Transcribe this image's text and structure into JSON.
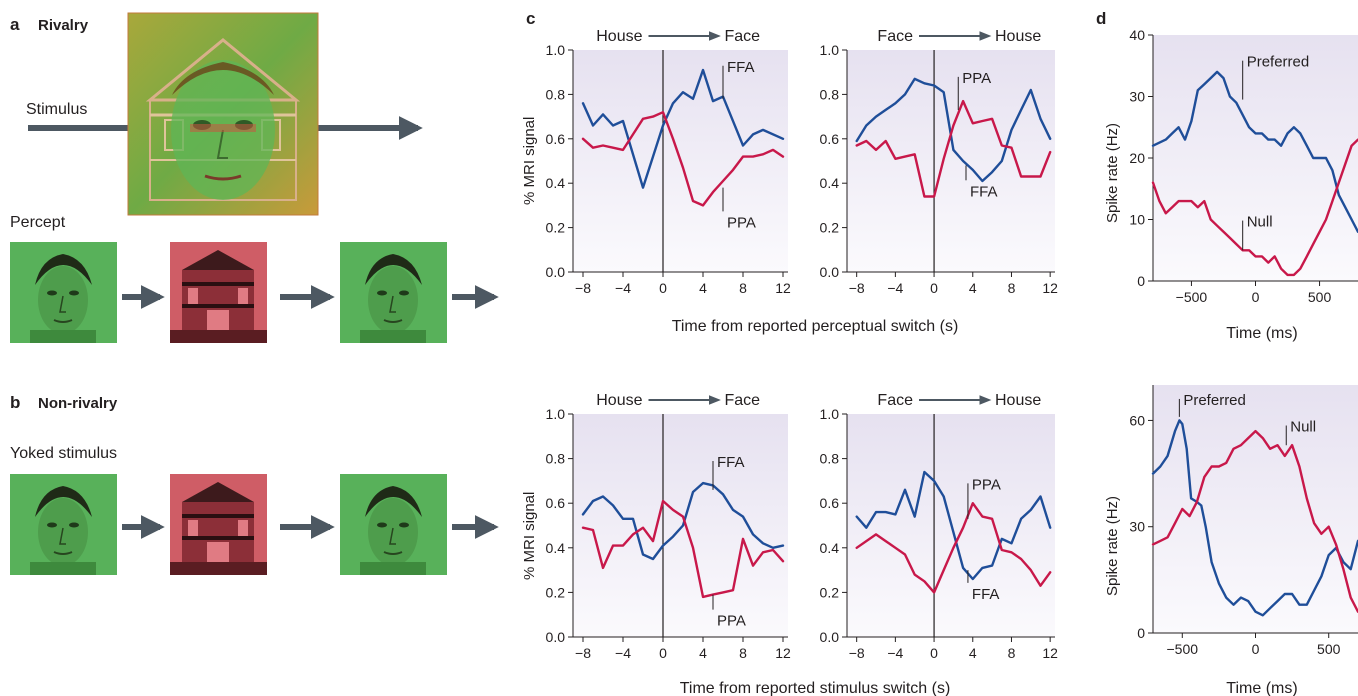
{
  "colors": {
    "ffa": "#1f4e99",
    "ppa": "#c8184a",
    "arrow": "#4d5862",
    "panel_bg_top": "#e9e5f2",
    "panel_bg_bottom": "#ffffff",
    "face_green": "#4fae55",
    "house_red": "#cc5661"
  },
  "panel_a": {
    "letter": "a",
    "title": "Rivalry",
    "stimulus_label": "Stimulus",
    "percept_label": "Percept",
    "stimulus_image": "superimposed-face-house-image",
    "percept_sequence": [
      "face",
      "house",
      "face"
    ]
  },
  "panel_b": {
    "letter": "b",
    "title": "Non-rivalry",
    "stimulus_label": "Yoked stimulus",
    "stimulus_sequence": [
      "face",
      "house",
      "face"
    ]
  },
  "panel_c": {
    "letter": "c",
    "ylabel": "% MRI signal",
    "xlabel_top": "Time from reported perceptual switch (s)",
    "xlabel_bottom": "Time from reported stimulus switch (s)"
  },
  "panel_d": {
    "letter": "d",
    "ylabel": "Spike rate (Hz)",
    "xlabel": "Time (ms)"
  },
  "chart_data": [
    {
      "id": "c_top_left",
      "type": "line",
      "header": {
        "from": "House",
        "to": "Face"
      },
      "xlim": [
        -9,
        12.5
      ],
      "ylim": [
        0,
        1
      ],
      "xticks": [
        -8,
        -4,
        0,
        4,
        8,
        12
      ],
      "yticks": [
        0.0,
        0.2,
        0.4,
        0.6,
        0.8,
        1.0
      ],
      "ytick_labels": [
        "0.0",
        "0.2",
        "0.4",
        "0.6",
        "0.8",
        "1.0"
      ],
      "series": [
        {
          "name": "FFA",
          "color": "#1f4e99",
          "x": [
            -8,
            -7,
            -6,
            -5,
            -4,
            -2,
            -1,
            0,
            1,
            2,
            3,
            4,
            5,
            6,
            8,
            9,
            10,
            12
          ],
          "y": [
            0.76,
            0.66,
            0.71,
            0.66,
            0.68,
            0.38,
            0.52,
            0.66,
            0.76,
            0.81,
            0.78,
            0.91,
            0.77,
            0.79,
            0.57,
            0.62,
            0.64,
            0.6
          ]
        },
        {
          "name": "PPA",
          "color": "#c8184a",
          "x": [
            -8,
            -7,
            -6,
            -5,
            -4,
            -2,
            -1,
            0,
            1,
            2,
            3,
            4,
            5,
            6,
            7,
            8,
            9,
            10,
            11,
            12
          ],
          "y": [
            0.6,
            0.56,
            0.57,
            0.56,
            0.55,
            0.69,
            0.7,
            0.72,
            0.6,
            0.47,
            0.32,
            0.3,
            0.36,
            0.41,
            0.46,
            0.52,
            0.52,
            0.53,
            0.55,
            0.52
          ]
        }
      ],
      "annotations": [
        {
          "text": "FFA",
          "x": 6,
          "y": 0.78,
          "label_y": 0.92
        },
        {
          "text": "PPA",
          "x": 6,
          "y": 0.38,
          "label_y": 0.21
        }
      ]
    },
    {
      "id": "c_top_right",
      "type": "line",
      "header": {
        "from": "Face",
        "to": "House"
      },
      "xlim": [
        -9,
        12.5
      ],
      "ylim": [
        0,
        1
      ],
      "xticks": [
        -8,
        -4,
        0,
        4,
        8,
        12
      ],
      "yticks": [
        0.0,
        0.2,
        0.4,
        0.6,
        0.8,
        1.0
      ],
      "ytick_labels": [
        "0.0",
        "0.2",
        "0.4",
        "0.6",
        "0.8",
        "1.0"
      ],
      "series": [
        {
          "name": "FFA",
          "color": "#1f4e99",
          "x": [
            -8,
            -7,
            -6,
            -5,
            -4,
            -3,
            -2,
            -1,
            0,
            1,
            2,
            3,
            4,
            5,
            6,
            7,
            8,
            9,
            10,
            11,
            12
          ],
          "y": [
            0.59,
            0.66,
            0.7,
            0.73,
            0.76,
            0.8,
            0.87,
            0.85,
            0.84,
            0.81,
            0.55,
            0.5,
            0.46,
            0.41,
            0.45,
            0.5,
            0.64,
            0.73,
            0.82,
            0.69,
            0.6
          ]
        },
        {
          "name": "PPA",
          "color": "#c8184a",
          "x": [
            -8,
            -7,
            -6,
            -5,
            -4,
            -3,
            -2,
            -1,
            0,
            1,
            2,
            3,
            4,
            5,
            6,
            7,
            8,
            9,
            10,
            11,
            12
          ],
          "y": [
            0.57,
            0.59,
            0.55,
            0.59,
            0.51,
            0.52,
            0.53,
            0.34,
            0.34,
            0.51,
            0.66,
            0.77,
            0.67,
            0.68,
            0.69,
            0.57,
            0.56,
            0.43,
            0.43,
            0.43,
            0.54
          ]
        }
      ],
      "annotations": [
        {
          "text": "PPA",
          "x": 2.5,
          "y": 0.73,
          "label_y": 0.87
        },
        {
          "text": "FFA",
          "x": 3.3,
          "y": 0.48,
          "label_y": 0.35
        }
      ]
    },
    {
      "id": "c_bottom_left",
      "type": "line",
      "header": {
        "from": "House",
        "to": "Face"
      },
      "xlim": [
        -9,
        12.5
      ],
      "ylim": [
        0,
        1
      ],
      "xticks": [
        -8,
        -4,
        0,
        4,
        8,
        12
      ],
      "yticks": [
        0.0,
        0.2,
        0.4,
        0.6,
        0.8,
        1.0
      ],
      "ytick_labels": [
        "0.0",
        "0.2",
        "0.4",
        "0.6",
        "0.8",
        "1.0"
      ],
      "series": [
        {
          "name": "FFA",
          "color": "#1f4e99",
          "x": [
            -8,
            -7,
            -6,
            -5,
            -4,
            -3,
            -2,
            -1,
            0,
            1,
            2,
            3,
            4,
            5,
            6,
            7,
            8,
            9,
            10,
            11,
            12
          ],
          "y": [
            0.55,
            0.61,
            0.63,
            0.59,
            0.53,
            0.53,
            0.37,
            0.35,
            0.41,
            0.45,
            0.5,
            0.65,
            0.69,
            0.68,
            0.64,
            0.57,
            0.54,
            0.46,
            0.42,
            0.4,
            0.41
          ]
        },
        {
          "name": "PPA",
          "color": "#c8184a",
          "x": [
            -8,
            -7,
            -6,
            -5,
            -4,
            -3,
            -2,
            -1,
            0,
            1,
            2,
            3,
            4,
            5,
            6,
            7,
            8,
            9,
            10,
            11,
            12
          ],
          "y": [
            0.49,
            0.48,
            0.31,
            0.41,
            0.41,
            0.46,
            0.49,
            0.43,
            0.61,
            0.57,
            0.54,
            0.4,
            0.18,
            0.19,
            0.2,
            0.21,
            0.44,
            0.32,
            0.38,
            0.39,
            0.34
          ]
        }
      ],
      "annotations": [
        {
          "text": "FFA",
          "x": 5,
          "y": 0.66,
          "label_y": 0.78
        },
        {
          "text": "PPA",
          "x": 5,
          "y": 0.19,
          "label_y": 0.06
        }
      ]
    },
    {
      "id": "c_bottom_right",
      "type": "line",
      "header": {
        "from": "Face",
        "to": "House"
      },
      "xlim": [
        -9,
        12.5
      ],
      "ylim": [
        0,
        1
      ],
      "xticks": [
        -8,
        -4,
        0,
        4,
        8,
        12
      ],
      "yticks": [
        0.0,
        0.2,
        0.4,
        0.6,
        0.8,
        1.0
      ],
      "ytick_labels": [
        "0.0",
        "0.2",
        "0.4",
        "0.6",
        "0.8",
        "1.0"
      ],
      "series": [
        {
          "name": "FFA",
          "color": "#1f4e99",
          "x": [
            -8,
            -7,
            -6,
            -5,
            -4,
            -3,
            -2,
            -1,
            0,
            1,
            2,
            3,
            4,
            5,
            6,
            7,
            8,
            9,
            10,
            11,
            12
          ],
          "y": [
            0.54,
            0.49,
            0.56,
            0.56,
            0.55,
            0.66,
            0.54,
            0.74,
            0.7,
            0.63,
            0.47,
            0.31,
            0.26,
            0.31,
            0.32,
            0.44,
            0.42,
            0.53,
            0.57,
            0.63,
            0.49
          ]
        },
        {
          "name": "PPA",
          "color": "#c8184a",
          "x": [
            -8,
            -6,
            -5,
            -4,
            -3,
            -2,
            -1,
            0,
            1,
            2,
            3,
            4,
            5,
            6,
            7,
            8,
            9,
            10,
            11,
            12
          ],
          "y": [
            0.4,
            0.46,
            0.43,
            0.4,
            0.37,
            0.28,
            0.25,
            0.2,
            0.3,
            0.4,
            0.49,
            0.6,
            0.54,
            0.53,
            0.39,
            0.38,
            0.35,
            0.3,
            0.23,
            0.29
          ]
        }
      ],
      "annotations": [
        {
          "text": "PPA",
          "x": 3.5,
          "y": 0.53,
          "label_y": 0.68
        },
        {
          "text": "FFA",
          "x": 3.5,
          "y": 0.3,
          "label_y": 0.18
        }
      ]
    },
    {
      "id": "d_top",
      "type": "line",
      "xlim": [
        -800,
        800
      ],
      "ylim": [
        0,
        40
      ],
      "xticks": [
        -500,
        0,
        500
      ],
      "yticks": [
        0,
        10,
        20,
        30,
        40
      ],
      "ytick_labels": [
        "0",
        "10",
        "20",
        "30",
        "40"
      ],
      "series": [
        {
          "name": "Preferred",
          "color": "#1f4e99",
          "x": [
            -800,
            -700,
            -650,
            -600,
            -550,
            -500,
            -450,
            -400,
            -350,
            -300,
            -250,
            -200,
            -150,
            -100,
            -50,
            0,
            50,
            100,
            150,
            200,
            250,
            300,
            350,
            400,
            450,
            500,
            550,
            600,
            650,
            700,
            750,
            800
          ],
          "y": [
            22,
            23,
            24,
            25,
            23,
            26,
            31,
            32,
            33,
            34,
            33,
            30,
            29,
            27,
            25,
            24,
            24,
            23,
            23,
            22,
            24,
            25,
            24,
            22,
            20,
            20,
            20,
            18,
            14,
            12,
            10,
            8
          ]
        },
        {
          "name": "Null",
          "color": "#c8184a",
          "x": [
            -800,
            -750,
            -700,
            -650,
            -600,
            -550,
            -500,
            -450,
            -400,
            -350,
            -300,
            -250,
            -200,
            -150,
            -100,
            -50,
            0,
            50,
            100,
            150,
            200,
            250,
            300,
            350,
            400,
            450,
            500,
            550,
            600,
            650,
            700,
            750,
            800
          ],
          "y": [
            16,
            13,
            11,
            12,
            13,
            13,
            13,
            12,
            13,
            10,
            9,
            8,
            7,
            6,
            5,
            5,
            4,
            4,
            3,
            4,
            2,
            1,
            1,
            2,
            4,
            6,
            8,
            10,
            13,
            16,
            19,
            22,
            23
          ]
        }
      ],
      "annotations": [
        {
          "text": "Preferred",
          "x": -100,
          "y": 29.5,
          "label_y": 35.5
        },
        {
          "text": "Null",
          "x": -100,
          "y": 5,
          "label_y": 9.5
        }
      ]
    },
    {
      "id": "d_bottom",
      "type": "line",
      "xlim": [
        -700,
        700
      ],
      "ylim": [
        0,
        70
      ],
      "xticks": [
        -500,
        0,
        500
      ],
      "yticks": [
        0,
        30,
        60
      ],
      "ytick_labels": [
        "0",
        "30",
        "60"
      ],
      "series": [
        {
          "name": "Preferred",
          "color": "#1f4e99",
          "x": [
            -700,
            -650,
            -600,
            -550,
            -520,
            -500,
            -470,
            -440,
            -400,
            -370,
            -340,
            -300,
            -250,
            -200,
            -150,
            -100,
            -50,
            0,
            50,
            100,
            150,
            200,
            250,
            300,
            350,
            400,
            450,
            500,
            550,
            600,
            650,
            700
          ],
          "y": [
            45,
            47,
            50,
            57,
            60,
            59,
            52,
            38,
            37,
            36,
            30,
            20,
            14,
            10,
            8,
            10,
            9,
            6,
            5,
            7,
            9,
            11,
            11,
            8,
            8,
            12,
            16,
            22,
            24,
            20,
            18,
            26
          ]
        },
        {
          "name": "Null",
          "color": "#c8184a",
          "x": [
            -700,
            -650,
            -600,
            -550,
            -500,
            -450,
            -400,
            -350,
            -300,
            -250,
            -200,
            -150,
            -100,
            -50,
            0,
            50,
            100,
            150,
            200,
            250,
            300,
            350,
            400,
            450,
            500,
            550,
            600,
            650,
            700
          ],
          "y": [
            25,
            26,
            27,
            31,
            35,
            33,
            37,
            44,
            47,
            47,
            48,
            52,
            53,
            55,
            57,
            55,
            52,
            53,
            50,
            53,
            47,
            38,
            31,
            28,
            30,
            25,
            18,
            10,
            6
          ]
        }
      ],
      "annotations": [
        {
          "text": "Preferred",
          "x": -520,
          "y": 61,
          "label_y": 65.5
        },
        {
          "text": "Null",
          "x": 210,
          "y": 53,
          "label_y": 58
        }
      ]
    }
  ]
}
